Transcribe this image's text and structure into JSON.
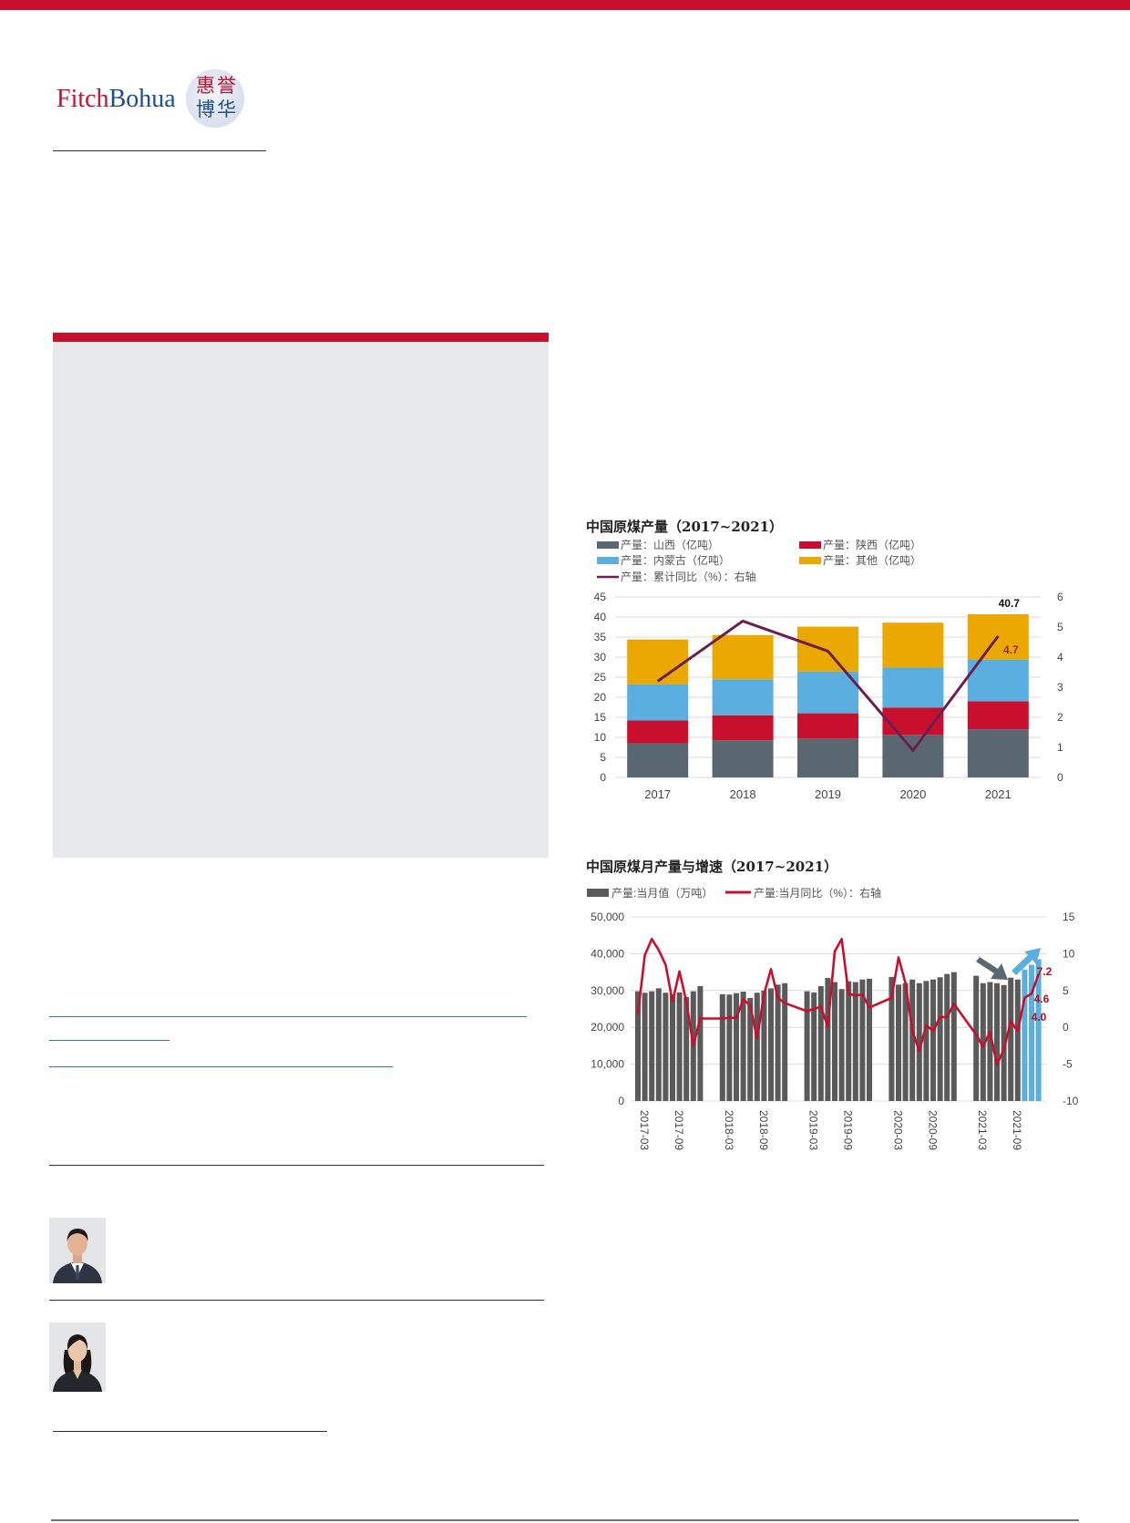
{
  "logo": {
    "brand_part1": "Fitch",
    "brand_part2": "Bohua",
    "seal_row1": "惠誉",
    "seal_row2": "博华"
  },
  "colors": {
    "accent_red": "#c8102e",
    "panel_gray": "#e8e9eb",
    "link_blue": "#3b6fb6",
    "shanxi": "#5b6770",
    "shaanxi": "#c8102e",
    "neimenggu": "#5aafe0",
    "other": "#eaa800",
    "line_purple": "#6b1f4f",
    "monthly_bar": "#5a5a5a",
    "monthly_line": "#c8102e",
    "forecast_blue": "#5aafe0"
  },
  "chart_data": [
    {
      "type": "bar",
      "stacked": true,
      "title": "中国原煤产量（2017~2021）",
      "categories": [
        "2017",
        "2018",
        "2019",
        "2020",
        "2021"
      ],
      "legend": [
        "产量：山西（亿吨）",
        "产量：陕西（亿吨）",
        "产量：内蒙古（亿吨）",
        "产量：其他（亿吨）",
        "产量：累计同比（%）：右轴"
      ],
      "series": [
        {
          "name": "产量：山西（亿吨）",
          "values": [
            8.5,
            9.3,
            9.7,
            10.6,
            12.0
          ]
        },
        {
          "name": "产量：陕西（亿吨）",
          "values": [
            5.7,
            6.2,
            6.3,
            6.8,
            7.0
          ]
        },
        {
          "name": "产量：内蒙古（亿吨）",
          "values": [
            9.0,
            9.0,
            10.4,
            10.0,
            10.4
          ]
        },
        {
          "name": "产量：其他（亿吨）",
          "values": [
            11.2,
            11.0,
            11.2,
            11.2,
            11.3
          ]
        }
      ],
      "line_series": {
        "name": "产量：累计同比（%）：右轴",
        "values": [
          3.2,
          5.2,
          4.2,
          0.9,
          4.7
        ]
      },
      "ylim": [
        0,
        45
      ],
      "yticks": [
        0,
        5,
        10,
        15,
        20,
        25,
        30,
        35,
        40,
        45
      ],
      "y2lim": [
        0,
        6
      ],
      "y2ticks": [
        0,
        1,
        2,
        3,
        4,
        5,
        6
      ],
      "annotations": {
        "total_2021": "40.7",
        "growth_2021": "4.7"
      },
      "legend_position": "top",
      "grid": true
    },
    {
      "type": "bar",
      "title": "中国原煤月产量与增速（2017~2021）",
      "legend": [
        "产量:当月值（万吨）",
        "产量:当月同比（%）：右轴"
      ],
      "x_labels": [
        "2017-03",
        "2017-09",
        "2018-03",
        "2018-09",
        "2019-03",
        "2019-09",
        "2020-03",
        "2020-09",
        "2021-03",
        "2021-09"
      ],
      "years": [
        {
          "year": "2017",
          "values": [
            29800,
            29400,
            29800,
            30600,
            29400,
            28900,
            29500,
            28200,
            29800,
            31200
          ],
          "yoy": [
            1.8,
            9.8,
            12.0,
            10.5,
            8.5,
            3.5,
            7.6,
            3.5,
            -2.5,
            1.2
          ]
        },
        {
          "year": "2018",
          "values": [
            29000,
            28900,
            29300,
            29700,
            28000,
            29400,
            30000,
            30600,
            31600,
            32000
          ],
          "yoy": [
            1.2,
            1.3,
            1.3,
            3.8,
            3.0,
            -1.5,
            4.5,
            7.9,
            4.0,
            3.3
          ]
        },
        {
          "year": "2019",
          "values": [
            29800,
            29500,
            31200,
            33400,
            32300,
            30400,
            32500,
            32300,
            33000,
            33200
          ],
          "yoy": [
            2.2,
            2.5,
            2.8,
            0.1,
            10.3,
            12.0,
            4.6,
            4.3,
            4.5,
            2.7
          ]
        },
        {
          "year": "2020",
          "values": [
            33700,
            31600,
            32000,
            33000,
            32000,
            32600,
            33000,
            33600,
            34500,
            35000
          ],
          "yoy": [
            4.0,
            9.5,
            6.0,
            -0.5,
            -3.2,
            0.3,
            -0.5,
            1.4,
            1.4,
            3.2
          ]
        },
        {
          "year": "2021",
          "values": [
            34000,
            32000,
            32300,
            32000,
            31500,
            33500,
            33000,
            35700,
            37000,
            38500
          ],
          "yoy": [
            -1.0,
            -2.6,
            -0.6,
            -5.0,
            -3.0,
            0.8,
            -0.5,
            4.0,
            4.6,
            7.2
          ],
          "forecast_start_index": 7
        }
      ],
      "ylim": [
        0,
        50000
      ],
      "yticks": [
        "0",
        "10,000",
        "20,000",
        "30,000",
        "40,000",
        "50,000"
      ],
      "y2lim": [
        -10,
        15
      ],
      "y2ticks": [
        "-10",
        "-5",
        "0",
        "5",
        "10",
        "15"
      ],
      "annotations": {
        "label_a": "7.2",
        "label_b": "4.6",
        "label_c": "4.0"
      },
      "legend_position": "top",
      "grid": true
    }
  ]
}
